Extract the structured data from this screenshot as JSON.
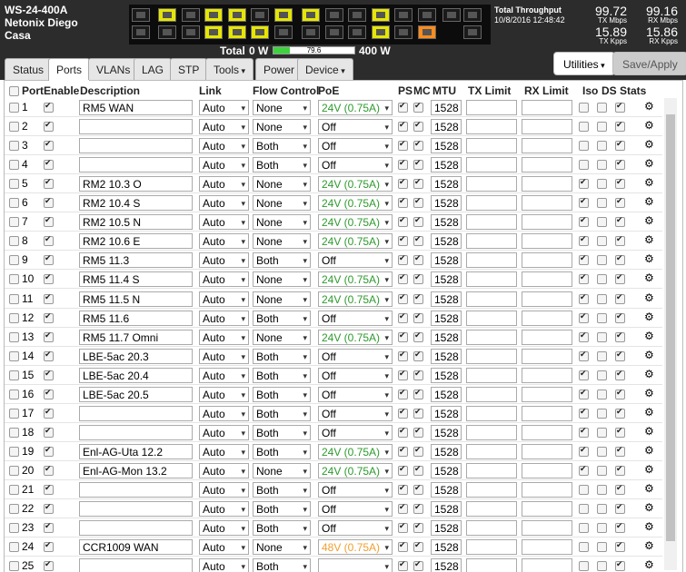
{
  "header": {
    "lines": [
      "WS-24-400A",
      "Netonix Diego",
      "Casa"
    ]
  },
  "throughput": {
    "title": "Total Throughput",
    "timestamp": "10/8/2016 12:48:42",
    "tx_mbps": {
      "value": 99.72,
      "unit": "TX Mbps"
    },
    "rx_mbps": {
      "value": 99.16,
      "unit": "RX Mbps"
    },
    "tx_kpps": {
      "value": 15.89,
      "unit": "TX Kpps"
    },
    "rx_kpps": {
      "value": 15.86,
      "unit": "RX Kpps"
    }
  },
  "power": {
    "label": "Total",
    "value": 79.6,
    "min": {
      "value": 0,
      "label": "0 W"
    },
    "max": {
      "value": 400,
      "label": "400 W"
    }
  },
  "tabs": [
    "Status",
    "Ports",
    "VLANs",
    "LAG",
    "STP",
    "Tools",
    "Power",
    "Device"
  ],
  "dropdown_tabs": [
    5,
    7
  ],
  "active_tab": 1,
  "buttons": [
    "Utilities",
    "Save/Apply"
  ],
  "poe_styles": {
    "24V (0.75A)": {
      "text": "#2e9a2e",
      "icon": "#e6e600"
    },
    "48V (0.75A)": {
      "text": "#f0a030",
      "icon": "#ff8c1a"
    }
  },
  "table": {
    "columns": [
      "Port",
      "Enable",
      "Description",
      "Link",
      "Flow Control",
      "PoE",
      "PS",
      "MC",
      "MTU",
      "TX Limit",
      "RX Limit",
      "Iso",
      "DS",
      "Stats"
    ],
    "rows": [
      [
        1,
        "RM5 WAN",
        "Auto",
        "None",
        "24V (0.75A)",
        1528,
        false
      ],
      [
        2,
        null,
        "Auto",
        "None",
        "Off",
        1528,
        false
      ],
      [
        3,
        null,
        "Auto",
        "Both",
        "Off",
        1528,
        false
      ],
      [
        4,
        null,
        "Auto",
        "Both",
        "Off",
        1528,
        false
      ],
      [
        5,
        "RM2 10.3 O",
        "Auto",
        "None",
        "24V (0.75A)",
        1528,
        true
      ],
      [
        6,
        "RM2 10.4 S",
        "Auto",
        "None",
        "24V (0.75A)",
        1528,
        true
      ],
      [
        7,
        "RM2 10.5 N",
        "Auto",
        "None",
        "24V (0.75A)",
        1528,
        true
      ],
      [
        8,
        "RM2 10.6 E",
        "Auto",
        "None",
        "24V (0.75A)",
        1528,
        true
      ],
      [
        9,
        "RM5 11.3",
        "Auto",
        "Both",
        "Off",
        1528,
        true
      ],
      [
        10,
        "RM5 11.4 S",
        "Auto",
        "None",
        "24V (0.75A)",
        1528,
        true
      ],
      [
        11,
        "RM5 11.5 N",
        "Auto",
        "None",
        "24V (0.75A)",
        1528,
        true
      ],
      [
        12,
        "RM5 11.6",
        "Auto",
        "Both",
        "Off",
        1528,
        true
      ],
      [
        13,
        "RM5 11.7 Omni",
        "Auto",
        "None",
        "24V (0.75A)",
        1528,
        true
      ],
      [
        14,
        "LBE-5ac 20.3",
        "Auto",
        "Both",
        "Off",
        1528,
        true
      ],
      [
        15,
        "LBE-5ac 20.4",
        "Auto",
        "Both",
        "Off",
        1528,
        true
      ],
      [
        16,
        "LBE-5ac 20.5",
        "Auto",
        "Both",
        "Off",
        1528,
        true
      ],
      [
        17,
        null,
        "Auto",
        "Both",
        "Off",
        1528,
        true
      ],
      [
        18,
        null,
        "Auto",
        "Both",
        "Off",
        1528,
        true
      ],
      [
        19,
        "Enl-AG-Uta 12.2",
        "Auto",
        "Both",
        "24V (0.75A)",
        1528,
        true
      ],
      [
        20,
        "Enl-AG-Mon 13.2",
        "Auto",
        "None",
        "24V (0.75A)",
        1528,
        true
      ],
      [
        21,
        null,
        "Auto",
        "Both",
        "Off",
        1528,
        false
      ],
      [
        22,
        null,
        "Auto",
        "Both",
        "Off",
        1528,
        false
      ],
      [
        23,
        null,
        "Auto",
        "Both",
        "Off",
        1528,
        false
      ],
      [
        24,
        "CCR1009 WAN",
        "Auto",
        "None",
        "48V (0.75A)",
        1528,
        false
      ],
      [
        25,
        null,
        "Auto",
        "Both",
        null,
        1528,
        false
      ]
    ]
  }
}
